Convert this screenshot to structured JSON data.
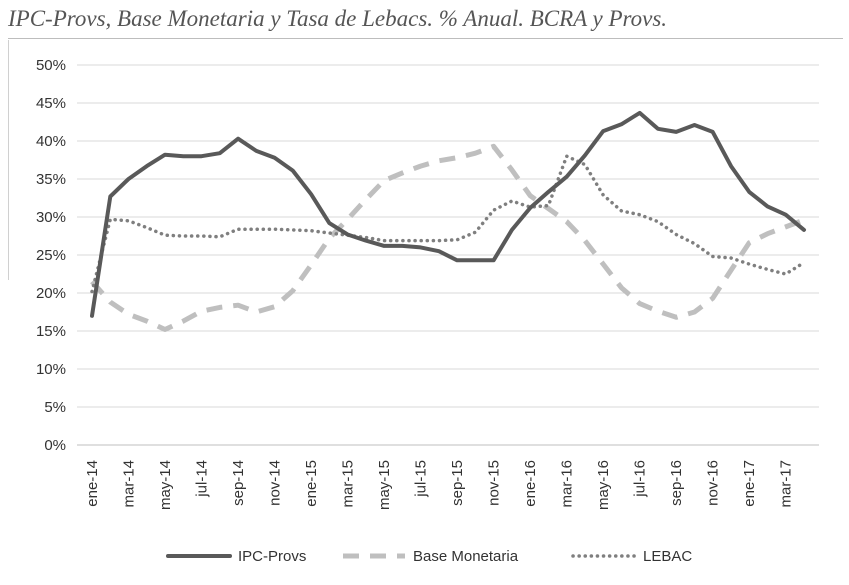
{
  "chart_data": {
    "type": "line",
    "title": "IPC-Provs, Base Monetaria y Tasa de Lebacs. % Anual. BCRA y Provs.",
    "xlabel": "",
    "ylabel": "",
    "ylim": [
      0,
      50
    ],
    "ytick_labels": [
      "0%",
      "5%",
      "10%",
      "15%",
      "20%",
      "25%",
      "30%",
      "35%",
      "40%",
      "45%",
      "50%"
    ],
    "grid": true,
    "legend_position": "bottom",
    "x": [
      "ene-14",
      "feb-14",
      "mar-14",
      "abr-14",
      "may-14",
      "jun-14",
      "jul-14",
      "ago-14",
      "sep-14",
      "oct-14",
      "nov-14",
      "dic-14",
      "ene-15",
      "feb-15",
      "mar-15",
      "abr-15",
      "may-15",
      "jun-15",
      "jul-15",
      "ago-15",
      "sep-15",
      "oct-15",
      "nov-15",
      "dic-15",
      "ene-16",
      "feb-16",
      "mar-16",
      "abr-16",
      "may-16",
      "jun-16",
      "jul-16",
      "ago-16",
      "sep-16",
      "oct-16",
      "nov-16",
      "dic-16",
      "ene-17",
      "feb-17",
      "mar-17",
      "abr-17"
    ],
    "xtick_labels": [
      "ene-14",
      "mar-14",
      "may-14",
      "jul-14",
      "sep-14",
      "nov-14",
      "ene-15",
      "mar-15",
      "may-15",
      "jul-15",
      "sep-15",
      "nov-15",
      "ene-16",
      "mar-16",
      "may-16",
      "jul-16",
      "sep-16",
      "nov-16",
      "ene-17",
      "mar-17"
    ],
    "series": [
      {
        "name": "IPC-Provs",
        "color": "#595959",
        "style": "solid",
        "values": [
          17.0,
          32.7,
          35.0,
          36.7,
          38.2,
          38.0,
          38.0,
          38.4,
          40.3,
          38.7,
          37.8,
          36.1,
          33.0,
          29.2,
          27.7,
          26.9,
          26.2,
          26.2,
          26.0,
          25.5,
          24.3,
          24.3,
          24.3,
          28.3,
          31.2,
          33.3,
          35.3,
          38.1,
          41.3,
          42.2,
          43.7,
          41.6,
          41.2,
          42.1,
          41.2,
          36.7,
          33.3,
          31.4,
          30.3,
          28.3
        ]
      },
      {
        "name": "Base Monetaria",
        "color": "#bfbfbf",
        "style": "dashed",
        "values": [
          21.5,
          18.8,
          17.2,
          16.3,
          15.2,
          16.3,
          17.6,
          18.1,
          18.4,
          17.5,
          18.2,
          20.3,
          23.7,
          27.2,
          29.7,
          32.3,
          34.8,
          35.8,
          36.7,
          37.4,
          37.8,
          38.4,
          39.3,
          36.2,
          32.8,
          31.1,
          29.4,
          26.9,
          23.8,
          20.7,
          18.6,
          17.6,
          16.8,
          17.5,
          19.3,
          23.0,
          26.6,
          27.8,
          28.7,
          29.6
        ]
      },
      {
        "name": "LEBAC",
        "color": "#7f7f7f",
        "style": "dotted",
        "values": [
          20.2,
          29.7,
          29.5,
          28.6,
          27.6,
          27.5,
          27.5,
          27.4,
          28.4,
          28.4,
          28.4,
          28.3,
          28.2,
          27.9,
          27.6,
          27.3,
          26.9,
          26.9,
          26.9,
          26.9,
          27.0,
          28.0,
          30.9,
          32.1,
          31.3,
          31.5,
          38.0,
          36.9,
          32.9,
          30.8,
          30.3,
          29.4,
          27.7,
          26.5,
          24.8,
          24.6,
          23.8,
          23.1,
          22.5,
          24.0
        ]
      }
    ]
  }
}
